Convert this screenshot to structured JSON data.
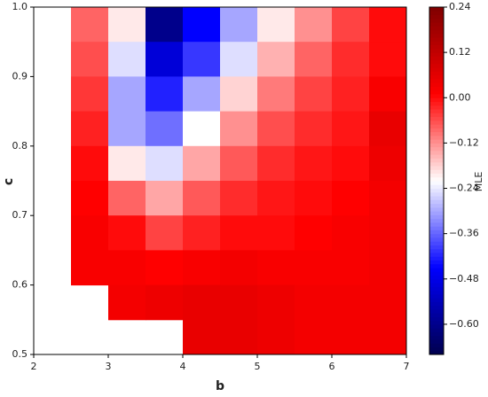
{
  "chart_data": {
    "type": "contour",
    "xlabel": "b",
    "ylabel": "c",
    "colorbar_label": "MLE",
    "colormap": "seismic",
    "x": [
      2.25,
      2.75,
      3.25,
      3.75,
      4.25,
      4.75,
      5.25,
      5.75,
      6.25,
      6.75
    ],
    "y": [
      0.975,
      0.925,
      0.875,
      0.825,
      0.775,
      0.725,
      0.675,
      0.625,
      0.575,
      0.525
    ],
    "z": [
      [
        null,
        -0.08,
        -0.2,
        -0.6,
        -0.45,
        -0.3,
        -0.2,
        -0.12,
        -0.05,
        0.0
      ],
      [
        null,
        -0.06,
        -0.25,
        -0.5,
        -0.4,
        -0.25,
        -0.15,
        -0.08,
        -0.03,
        0.0
      ],
      [
        null,
        -0.04,
        -0.3,
        -0.42,
        -0.3,
        -0.18,
        -0.1,
        -0.05,
        -0.02,
        0.02
      ],
      [
        null,
        -0.02,
        -0.3,
        -0.35,
        -0.22,
        -0.12,
        -0.06,
        -0.03,
        -0.01,
        0.05
      ],
      [
        null,
        0.0,
        -0.2,
        -0.25,
        -0.14,
        -0.07,
        -0.03,
        -0.01,
        0.0,
        0.04
      ],
      [
        null,
        0.01,
        -0.08,
        -0.14,
        -0.07,
        -0.03,
        -0.01,
        0.0,
        0.01,
        0.03
      ],
      [
        null,
        0.02,
        0.0,
        -0.05,
        -0.02,
        0.0,
        0.0,
        0.01,
        0.02,
        0.03
      ],
      [
        null,
        0.02,
        0.02,
        0.01,
        0.02,
        0.03,
        0.02,
        0.02,
        0.02,
        0.03
      ],
      [
        null,
        null,
        0.03,
        0.04,
        0.05,
        0.05,
        0.04,
        0.03,
        0.03,
        0.03
      ],
      [
        null,
        null,
        null,
        null,
        0.05,
        0.05,
        0.04,
        0.03,
        0.03,
        0.03
      ]
    ],
    "xlim": [
      2,
      7
    ],
    "ylim": [
      0.5,
      1.0
    ],
    "xticks": [
      2,
      3,
      4,
      5,
      6,
      7
    ],
    "yticks": [
      0.5,
      0.6,
      0.7,
      0.8,
      0.9,
      {
        "value": 1,
        "label": "1.0"
      }
    ],
    "zlim": [
      -0.68,
      0.24
    ],
    "zticks": [
      0.24,
      0.12,
      {
        "value": 0,
        "label": "0.00"
      },
      {
        "value": -0.12,
        "label": "−0.12"
      },
      {
        "value": -0.24,
        "label": "−0.24"
      },
      {
        "value": -0.36,
        "label": "−0.36"
      },
      {
        "value": -0.48,
        "label": "−0.48"
      },
      {
        "value": -0.6,
        "label": "−0.60"
      }
    ]
  }
}
